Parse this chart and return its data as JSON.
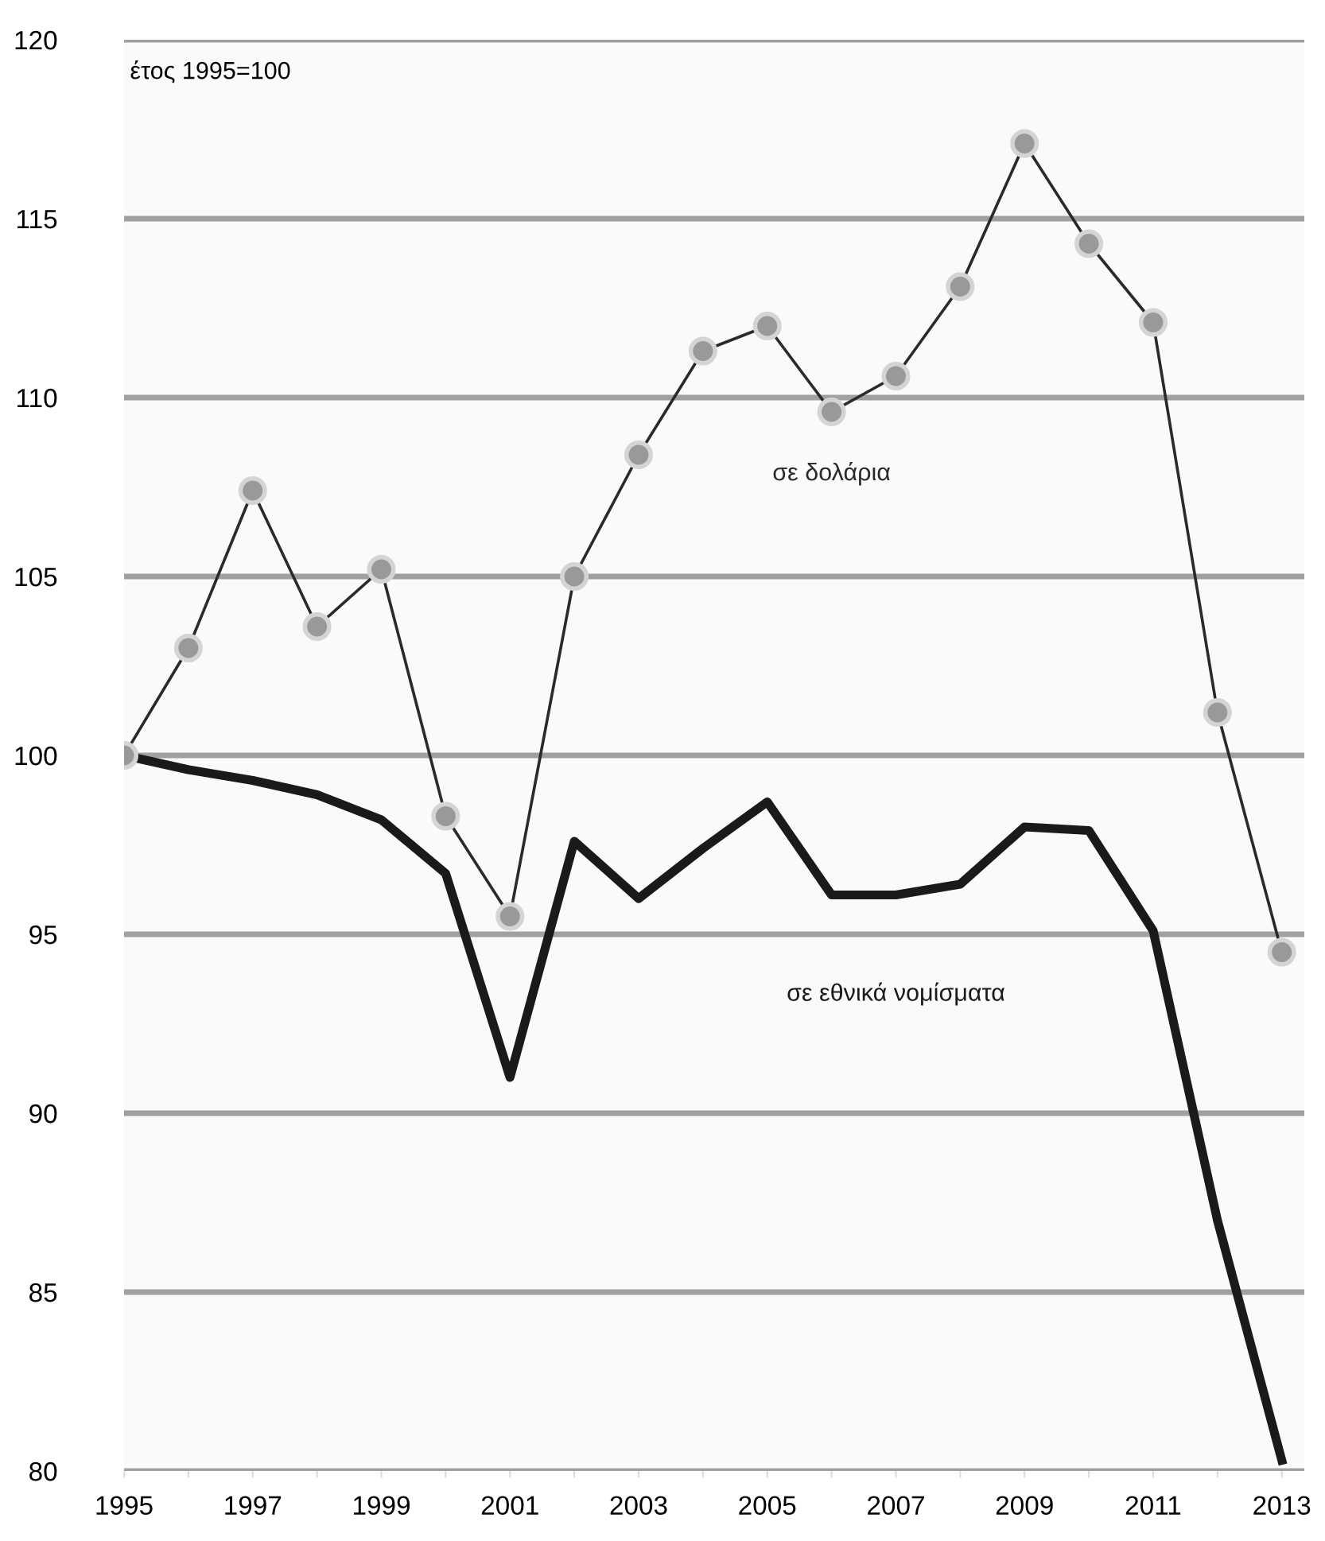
{
  "chart_data": {
    "type": "line",
    "x": [
      1995,
      1996,
      1997,
      1998,
      1999,
      2000,
      2001,
      2002,
      2003,
      2004,
      2005,
      2006,
      2007,
      2008,
      2009,
      2010,
      2011,
      2012,
      2013
    ],
    "series": [
      {
        "name": "σε δολάρια",
        "color": "#2a2a2a",
        "marker": "circle",
        "values": [
          100,
          103.0,
          107.4,
          103.6,
          105.2,
          98.3,
          95.5,
          105.0,
          108.4,
          111.3,
          112.0,
          109.6,
          110.6,
          113.1,
          117.1,
          114.3,
          112.1,
          101.2,
          94.5
        ]
      },
      {
        "name": "σε εθνικά νομίσματα",
        "color": "#1a1a1a",
        "marker": "none",
        "values": [
          100,
          99.6,
          99.3,
          98.9,
          98.2,
          96.7,
          91.0,
          97.6,
          96.0,
          97.4,
          98.7,
          96.1,
          96.1,
          96.4,
          98.0,
          97.9,
          95.1,
          87.0,
          80.3
        ]
      }
    ],
    "annotations": [
      "έτος 1995=100"
    ],
    "xlim": [
      1995,
      2013.35
    ],
    "xticks": [
      1995,
      {
        "value": 1996,
        "label": null
      },
      1997,
      {
        "value": 1998,
        "label": null
      },
      1999,
      {
        "value": 2000,
        "label": null
      },
      2001,
      {
        "value": 2002,
        "label": null
      },
      2003,
      {
        "value": 2004,
        "label": null
      },
      2005,
      {
        "value": 2006,
        "label": null
      },
      2007,
      {
        "value": 2008,
        "label": null
      },
      2009,
      {
        "value": 2010,
        "label": null
      },
      2011,
      {
        "value": 2012,
        "label": null
      },
      2013
    ],
    "ylim": [
      80,
      120
    ],
    "yticks": [
      80,
      85,
      90,
      95,
      100,
      105,
      110,
      115,
      120
    ],
    "grid": "y",
    "legend": false
  }
}
